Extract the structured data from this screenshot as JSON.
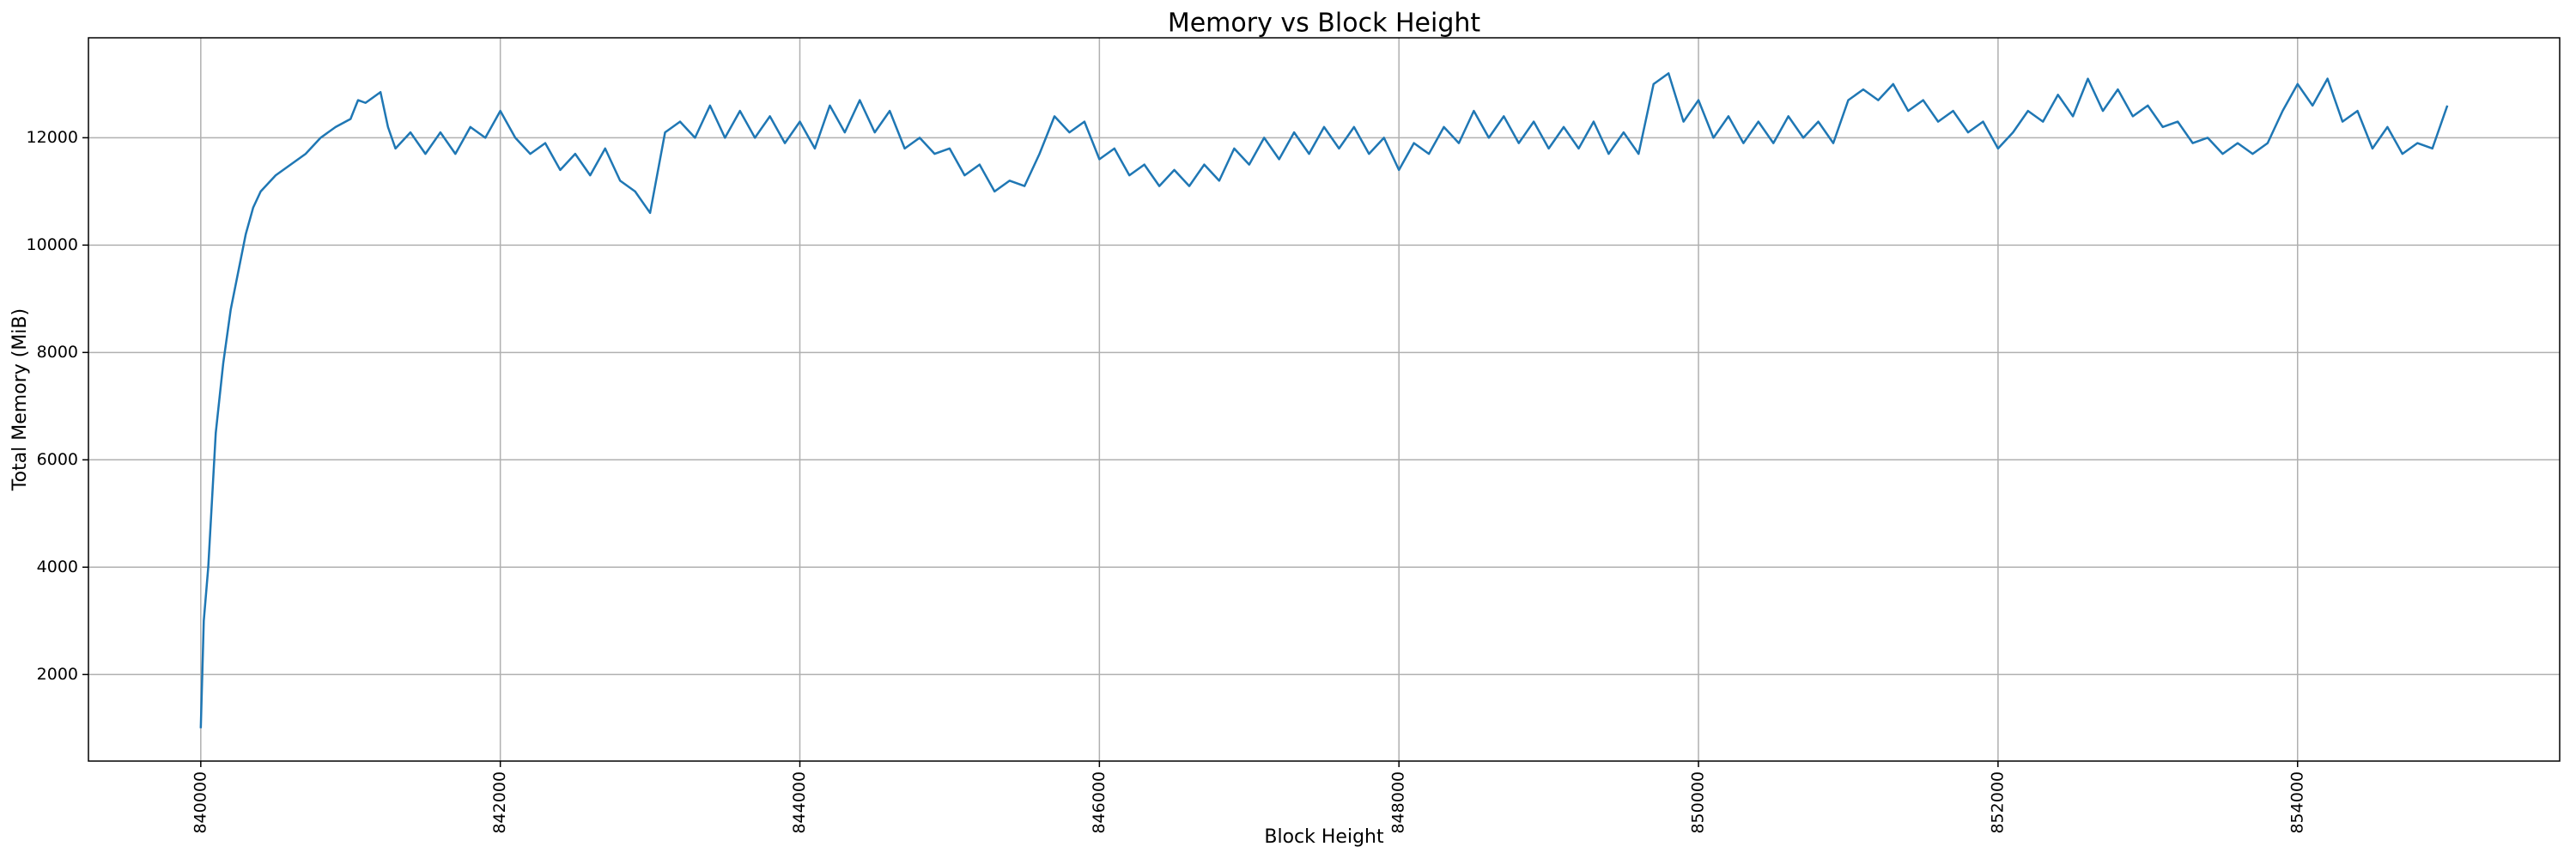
{
  "chart_data": {
    "type": "line",
    "title": "Memory vs Block Height",
    "xlabel": "Block Height",
    "ylabel": "Total Memory (MiB)",
    "color": "#1f77b4",
    "grid": true,
    "xlim": [
      839250,
      855750
    ],
    "ylim": [
      388,
      13862
    ],
    "xticks": [
      840000,
      842000,
      844000,
      846000,
      848000,
      850000,
      852000,
      854000
    ],
    "yticks": [
      2000,
      4000,
      6000,
      8000,
      10000,
      12000
    ],
    "x": [
      840000,
      840020,
      840050,
      840100,
      840150,
      840200,
      840250,
      840300,
      840350,
      840400,
      840500,
      840600,
      840700,
      840800,
      840900,
      841000,
      841050,
      841100,
      841200,
      841250,
      841300,
      841400,
      841500,
      841600,
      841700,
      841800,
      841900,
      842000,
      842100,
      842200,
      842300,
      842400,
      842500,
      842600,
      842700,
      842800,
      842900,
      843000,
      843100,
      843200,
      843300,
      843400,
      843500,
      843600,
      843700,
      843800,
      843900,
      844000,
      844100,
      844200,
      844300,
      844400,
      844500,
      844600,
      844700,
      844800,
      844900,
      845000,
      845100,
      845200,
      845300,
      845400,
      845500,
      845600,
      845700,
      845800,
      845900,
      846000,
      846100,
      846200,
      846300,
      846400,
      846500,
      846600,
      846700,
      846800,
      846900,
      847000,
      847100,
      847200,
      847300,
      847400,
      847500,
      847600,
      847700,
      847800,
      847900,
      848000,
      848100,
      848200,
      848300,
      848400,
      848500,
      848600,
      848700,
      848800,
      848900,
      849000,
      849100,
      849200,
      849300,
      849400,
      849500,
      849600,
      849700,
      849800,
      849900,
      850000,
      850100,
      850200,
      850300,
      850400,
      850500,
      850600,
      850700,
      850800,
      850900,
      851000,
      851100,
      851200,
      851300,
      851400,
      851500,
      851600,
      851700,
      851800,
      851900,
      852000,
      852100,
      852200,
      852300,
      852400,
      852500,
      852600,
      852700,
      852800,
      852900,
      853000,
      853100,
      853200,
      853300,
      853400,
      853500,
      853600,
      853700,
      853800,
      853900,
      854000,
      854100,
      854200,
      854300,
      854400,
      854500,
      854600,
      854700,
      854800,
      854900,
      855000
    ],
    "values": [
      1000,
      3000,
      4000,
      6500,
      7800,
      8800,
      9500,
      10200,
      10700,
      11000,
      11300,
      11500,
      11700,
      12000,
      12200,
      12350,
      12700,
      12650,
      12850,
      12200,
      11800,
      12100,
      11700,
      12100,
      11700,
      12200,
      12000,
      12500,
      12000,
      11700,
      11900,
      11400,
      11700,
      11300,
      11800,
      11200,
      11000,
      10600,
      12100,
      12300,
      12000,
      12600,
      12000,
      12500,
      12000,
      12400,
      11900,
      12300,
      11800,
      12600,
      12100,
      12700,
      12100,
      12500,
      11800,
      12000,
      11700,
      11800,
      11300,
      11500,
      11000,
      11200,
      11100,
      11700,
      12400,
      12100,
      12300,
      11600,
      11800,
      11300,
      11500,
      11100,
      11400,
      11100,
      11500,
      11200,
      11800,
      11500,
      12000,
      11600,
      12100,
      11700,
      12200,
      11800,
      12200,
      11700,
      12000,
      11400,
      11900,
      11700,
      12200,
      11900,
      12500,
      12000,
      12400,
      11900,
      12300,
      11800,
      12200,
      11800,
      12300,
      11700,
      12100,
      11700,
      13000,
      13200,
      12300,
      12700,
      12000,
      12400,
      11900,
      12300,
      11900,
      12400,
      12000,
      12300,
      11900,
      12700,
      12900,
      12700,
      13000,
      12500,
      12700,
      12300,
      12500,
      12100,
      12300,
      11800,
      12100,
      12500,
      12300,
      12800,
      12400,
      13100,
      12500,
      12900,
      12400,
      12600,
      12200,
      12300,
      11900,
      12000,
      11700,
      11900,
      11700,
      11900,
      12500,
      13000,
      12600,
      13100,
      12300,
      12500,
      11800,
      12200,
      11700,
      11900,
      11800,
      12600
    ]
  }
}
